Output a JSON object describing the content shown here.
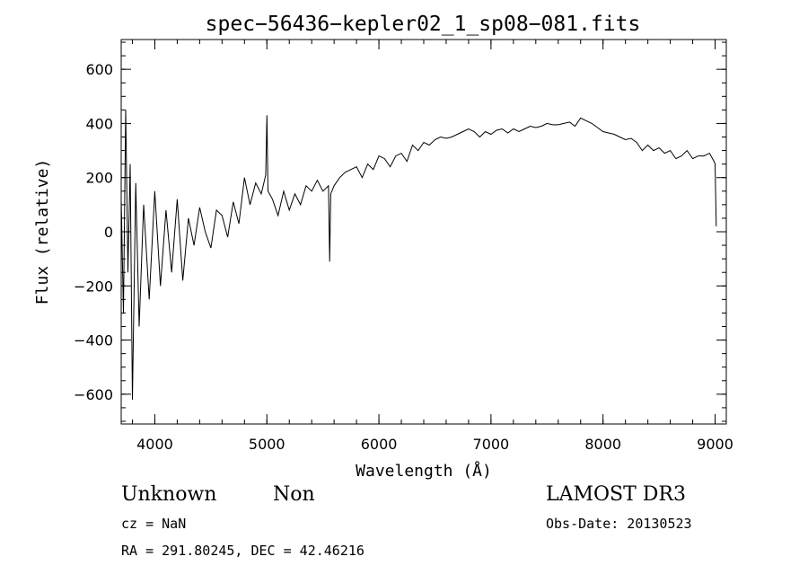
{
  "chart_data": {
    "type": "line",
    "title": "spec−56436−kepler02_1_sp08−081.fits",
    "xlabel": "Wavelength (Å)",
    "ylabel": "Flux (relative)",
    "xlim": [
      3700,
      9100
    ],
    "ylim": [
      -710,
      710
    ],
    "xticks": [
      4000,
      5000,
      6000,
      7000,
      8000,
      9000
    ],
    "yticks": [
      -600,
      -400,
      -200,
      0,
      200,
      400,
      600
    ],
    "ytick_labels": [
      "−600",
      "−400",
      "−200",
      "0",
      "200",
      "400",
      "600"
    ],
    "grid": false,
    "series": [
      {
        "name": "flux",
        "x": [
          3700,
          3720,
          3740,
          3760,
          3780,
          3800,
          3830,
          3860,
          3900,
          3950,
          4000,
          4050,
          4100,
          4150,
          4200,
          4250,
          4300,
          4350,
          4400,
          4450,
          4500,
          4550,
          4600,
          4650,
          4700,
          4750,
          4800,
          4850,
          4900,
          4950,
          4990,
          5000,
          5010,
          5050,
          5100,
          5150,
          5200,
          5250,
          5300,
          5350,
          5400,
          5450,
          5500,
          5550,
          5560,
          5570,
          5600,
          5650,
          5700,
          5750,
          5800,
          5850,
          5900,
          5950,
          6000,
          6050,
          6100,
          6150,
          6200,
          6250,
          6300,
          6350,
          6400,
          6450,
          6500,
          6550,
          6600,
          6650,
          6700,
          6750,
          6800,
          6850,
          6900,
          6950,
          7000,
          7050,
          7100,
          7150,
          7200,
          7250,
          7300,
          7350,
          7400,
          7450,
          7500,
          7550,
          7600,
          7650,
          7700,
          7750,
          7800,
          7850,
          7900,
          7950,
          8000,
          8050,
          8100,
          8150,
          8200,
          8250,
          8300,
          8350,
          8400,
          8450,
          8500,
          8550,
          8600,
          8650,
          8700,
          8750,
          8800,
          8850,
          8900,
          8950,
          8990,
          9000,
          9010
        ],
        "y": [
          120,
          -300,
          450,
          -150,
          250,
          -620,
          180,
          -350,
          100,
          -250,
          150,
          -200,
          80,
          -150,
          120,
          -180,
          50,
          -50,
          90,
          0,
          -60,
          80,
          60,
          -20,
          110,
          30,
          200,
          100,
          180,
          140,
          210,
          430,
          150,
          120,
          60,
          150,
          80,
          140,
          100,
          170,
          150,
          190,
          150,
          170,
          -110,
          140,
          170,
          200,
          220,
          230,
          240,
          200,
          250,
          230,
          280,
          270,
          240,
          280,
          290,
          260,
          320,
          300,
          330,
          320,
          340,
          350,
          345,
          350,
          360,
          370,
          380,
          370,
          350,
          370,
          360,
          375,
          380,
          365,
          380,
          370,
          380,
          390,
          385,
          390,
          400,
          395,
          395,
          400,
          405,
          390,
          420,
          410,
          400,
          385,
          370,
          365,
          360,
          350,
          340,
          345,
          330,
          300,
          320,
          300,
          310,
          290,
          300,
          270,
          280,
          300,
          270,
          280,
          280,
          290,
          260,
          250,
          20
        ]
      }
    ]
  },
  "info": {
    "class_label": "Unknown",
    "subclass_label": "Non",
    "survey": "LAMOST DR3",
    "cz": "cz = NaN",
    "obs_date": "Obs-Date: 20130523",
    "coords": "RA = 291.80245, DEC =  42.46216"
  }
}
